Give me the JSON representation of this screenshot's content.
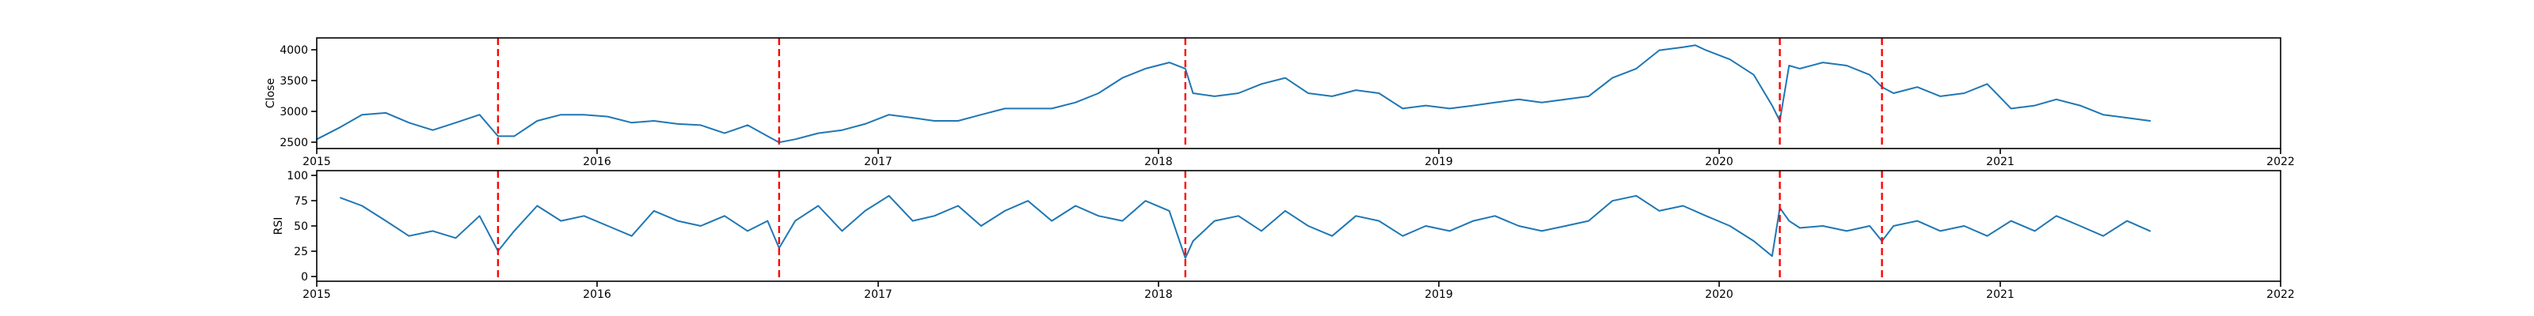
{
  "chart_data": [
    {
      "type": "line",
      "panel": "close",
      "title": "",
      "xlabel": "",
      "ylabel": "Close",
      "xlim": [
        "2015-01-01",
        "2022-01-01"
      ],
      "ylim": [
        2400,
        4200
      ],
      "xticks": [
        "2015",
        "2016",
        "2017",
        "2018",
        "2019",
        "2020",
        "2021",
        "2022"
      ],
      "yticks": [
        2500,
        3000,
        3500,
        4000
      ],
      "grid": false,
      "line_color": "#1f77b4",
      "series": [
        {
          "x": [
            "2015-01-01",
            "2015-02-01",
            "2015-03-01",
            "2015-04-01",
            "2015-05-01",
            "2015-06-01",
            "2015-07-01",
            "2015-08-01",
            "2015-08-25",
            "2015-09-15",
            "2015-10-15",
            "2015-11-15",
            "2015-12-15",
            "2016-01-15",
            "2016-02-15",
            "2016-03-15",
            "2016-04-15",
            "2016-05-15",
            "2016-06-15",
            "2016-07-15",
            "2016-08-10",
            "2016-08-25",
            "2016-09-15",
            "2016-10-15",
            "2016-11-15",
            "2016-12-15",
            "2017-01-15",
            "2017-02-15",
            "2017-03-15",
            "2017-04-15",
            "2017-05-15",
            "2017-06-15",
            "2017-07-15",
            "2017-08-15",
            "2017-09-15",
            "2017-10-15",
            "2017-11-15",
            "2017-12-15",
            "2018-01-15",
            "2018-02-05",
            "2018-02-15",
            "2018-03-15",
            "2018-04-15",
            "2018-05-15",
            "2018-06-15",
            "2018-07-15",
            "2018-08-15",
            "2018-09-15",
            "2018-10-15",
            "2018-11-15",
            "2018-12-15",
            "2019-01-15",
            "2019-02-15",
            "2019-03-15",
            "2019-04-15",
            "2019-05-15",
            "2019-06-15",
            "2019-07-15",
            "2019-08-15",
            "2019-09-15",
            "2019-10-15",
            "2019-11-15",
            "2019-12-01",
            "2019-12-15",
            "2020-01-15",
            "2020-02-15",
            "2020-03-10",
            "2020-03-20",
            "2020-04-01",
            "2020-04-15",
            "2020-05-15",
            "2020-06-15",
            "2020-07-15",
            "2020-07-31",
            "2020-08-15",
            "2020-09-15",
            "2020-10-15",
            "2020-11-15",
            "2020-12-15",
            "2021-01-15",
            "2021-02-15",
            "2021-03-15",
            "2021-04-15",
            "2021-05-15",
            "2021-06-15",
            "2021-07-15"
          ],
          "y": [
            2550,
            2750,
            2950,
            2980,
            2820,
            2700,
            2820,
            2950,
            2600,
            2600,
            2850,
            2950,
            2950,
            2920,
            2820,
            2850,
            2800,
            2780,
            2650,
            2780,
            2600,
            2500,
            2550,
            2650,
            2700,
            2800,
            2950,
            2900,
            2850,
            2850,
            2950,
            3050,
            3050,
            3050,
            3150,
            3300,
            3550,
            3700,
            3800,
            3700,
            3300,
            3250,
            3300,
            3450,
            3550,
            3300,
            3250,
            3350,
            3300,
            3050,
            3100,
            3050,
            3100,
            3150,
            3200,
            3150,
            3200,
            3250,
            3550,
            3700,
            4000,
            4050,
            4080,
            4000,
            3850,
            3600,
            3100,
            2850,
            3750,
            3700,
            3800,
            3750,
            3600,
            3400,
            3300,
            3400,
            3250,
            3300,
            3450,
            3050,
            3100,
            3200,
            3100,
            2950,
            2900,
            2850
          ]
        }
      ],
      "events": [
        "2015-08-25",
        "2016-08-25",
        "2018-02-05",
        "2020-03-20",
        "2020-07-31"
      ],
      "event_color": "#ff0000"
    },
    {
      "type": "line",
      "panel": "rsi",
      "title": "",
      "xlabel": "",
      "ylabel": "RSI",
      "xlim": [
        "2015-01-01",
        "2022-01-01"
      ],
      "ylim": [
        -5,
        105
      ],
      "xticks": [
        "2015",
        "2016",
        "2017",
        "2018",
        "2019",
        "2020",
        "2021",
        "2022"
      ],
      "yticks": [
        0,
        25,
        50,
        75,
        100
      ],
      "grid": false,
      "line_color": "#1f77b4",
      "series": [
        {
          "x": [
            "2015-02-01",
            "2015-03-01",
            "2015-04-01",
            "2015-05-01",
            "2015-06-01",
            "2015-07-01",
            "2015-08-01",
            "2015-08-25",
            "2015-09-15",
            "2015-10-15",
            "2015-11-15",
            "2015-12-15",
            "2016-01-15",
            "2016-02-15",
            "2016-03-15",
            "2016-04-15",
            "2016-05-15",
            "2016-06-15",
            "2016-07-15",
            "2016-08-10",
            "2016-08-25",
            "2016-09-15",
            "2016-10-15",
            "2016-11-15",
            "2016-12-15",
            "2017-01-15",
            "2017-02-15",
            "2017-03-15",
            "2017-04-15",
            "2017-05-15",
            "2017-06-15",
            "2017-07-15",
            "2017-08-15",
            "2017-09-15",
            "2017-10-15",
            "2017-11-15",
            "2017-12-15",
            "2018-01-15",
            "2018-02-05",
            "2018-02-15",
            "2018-03-15",
            "2018-04-15",
            "2018-05-15",
            "2018-06-15",
            "2018-07-15",
            "2018-08-15",
            "2018-09-15",
            "2018-10-15",
            "2018-11-15",
            "2018-12-15",
            "2019-01-15",
            "2019-02-15",
            "2019-03-15",
            "2019-04-15",
            "2019-05-15",
            "2019-06-15",
            "2019-07-15",
            "2019-08-15",
            "2019-09-15",
            "2019-10-15",
            "2019-11-15",
            "2019-12-15",
            "2020-01-15",
            "2020-02-15",
            "2020-03-10",
            "2020-03-20",
            "2020-04-01",
            "2020-04-15",
            "2020-05-15",
            "2020-06-15",
            "2020-07-15",
            "2020-07-31",
            "2020-08-15",
            "2020-09-15",
            "2020-10-15",
            "2020-11-15",
            "2020-12-15",
            "2021-01-15",
            "2021-02-15",
            "2021-03-15",
            "2021-04-15",
            "2021-05-15",
            "2021-06-15",
            "2021-07-15"
          ],
          "y": [
            78,
            70,
            55,
            40,
            45,
            38,
            60,
            25,
            45,
            70,
            55,
            60,
            50,
            40,
            65,
            55,
            50,
            60,
            45,
            55,
            28,
            55,
            70,
            45,
            65,
            80,
            55,
            60,
            70,
            50,
            65,
            75,
            55,
            70,
            60,
            55,
            75,
            65,
            18,
            35,
            55,
            60,
            45,
            65,
            50,
            40,
            60,
            55,
            40,
            50,
            45,
            55,
            60,
            50,
            45,
            50,
            55,
            75,
            80,
            65,
            70,
            60,
            50,
            35,
            20,
            68,
            55,
            48,
            50,
            45,
            50,
            35,
            50,
            55,
            45,
            50,
            40,
            55,
            45,
            60,
            50,
            40,
            55,
            45
          ]
        }
      ],
      "events": [
        "2015-08-25",
        "2016-08-25",
        "2018-02-05",
        "2020-03-20",
        "2020-07-31"
      ],
      "event_color": "#ff0000"
    }
  ]
}
